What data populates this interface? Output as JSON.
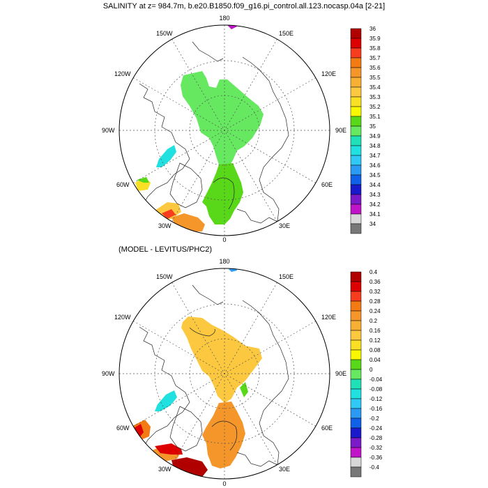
{
  "header": {
    "title": "SALINITY at z= 984.7m, b.e20.B1850.f09_g16.pi_control.all.123.nocasp.04a [2-21]"
  },
  "lower_panel": {
    "subtitle": "(MODEL - LEVITUS/PHC2)"
  },
  "longitude_labels": [
    "180",
    "150E",
    "120E",
    "90E",
    "60E",
    "30E",
    "0",
    "30W",
    "60W",
    "90W",
    "120W",
    "150W"
  ],
  "colorbar_top": {
    "labels": [
      "36",
      "35.9",
      "35.8",
      "35.7",
      "35.6",
      "35.5",
      "35.4",
      "35.3",
      "35.2",
      "35.1",
      "35",
      "34.9",
      "34.8",
      "34.7",
      "34.6",
      "34.5",
      "34.4",
      "34.3",
      "34.2",
      "34.1",
      "34"
    ],
    "colors": [
      "#b00000",
      "#dd0000",
      "#f83c1e",
      "#f47a14",
      "#f5962a",
      "#f7b034",
      "#fbc840",
      "#f9e024",
      "#f8f800",
      "#58d818",
      "#66e860",
      "#20e0b8",
      "#20e0e0",
      "#30c8f4",
      "#2a9af2",
      "#1060e8",
      "#1a1acc",
      "#7a1ac8",
      "#c014c8",
      "#d8d8d8",
      "#787878"
    ]
  },
  "colorbar_bottom": {
    "labels": [
      "0.4",
      "0.36",
      "0.32",
      "0.28",
      "0.24",
      "0.2",
      "0.16",
      "0.12",
      "0.08",
      "0.04",
      "0",
      "-0.04",
      "-0.08",
      "-0.12",
      "-0.16",
      "-0.2",
      "-0.24",
      "-0.28",
      "-0.32",
      "-0.36",
      "-0.4"
    ],
    "colors": [
      "#b00000",
      "#dd0000",
      "#f83c1e",
      "#f47a14",
      "#f5962a",
      "#f7b034",
      "#fbc840",
      "#f9e024",
      "#f8f800",
      "#58d818",
      "#66e860",
      "#20e0b8",
      "#20e0e0",
      "#30c8f4",
      "#2a9af2",
      "#1060e8",
      "#1a1acc",
      "#7a1ac8",
      "#c014c8",
      "#d8d8d8",
      "#787878"
    ]
  },
  "fill_colors": {
    "green": "#66e860",
    "dark_green": "#58d818",
    "cyan": "#20e0e0",
    "yellow": "#fbc840",
    "light_orange": "#f7b034",
    "orange": "#f5962a",
    "red": "#dd0000",
    "dark_red": "#b00000",
    "magenta": "#c014c8"
  }
}
